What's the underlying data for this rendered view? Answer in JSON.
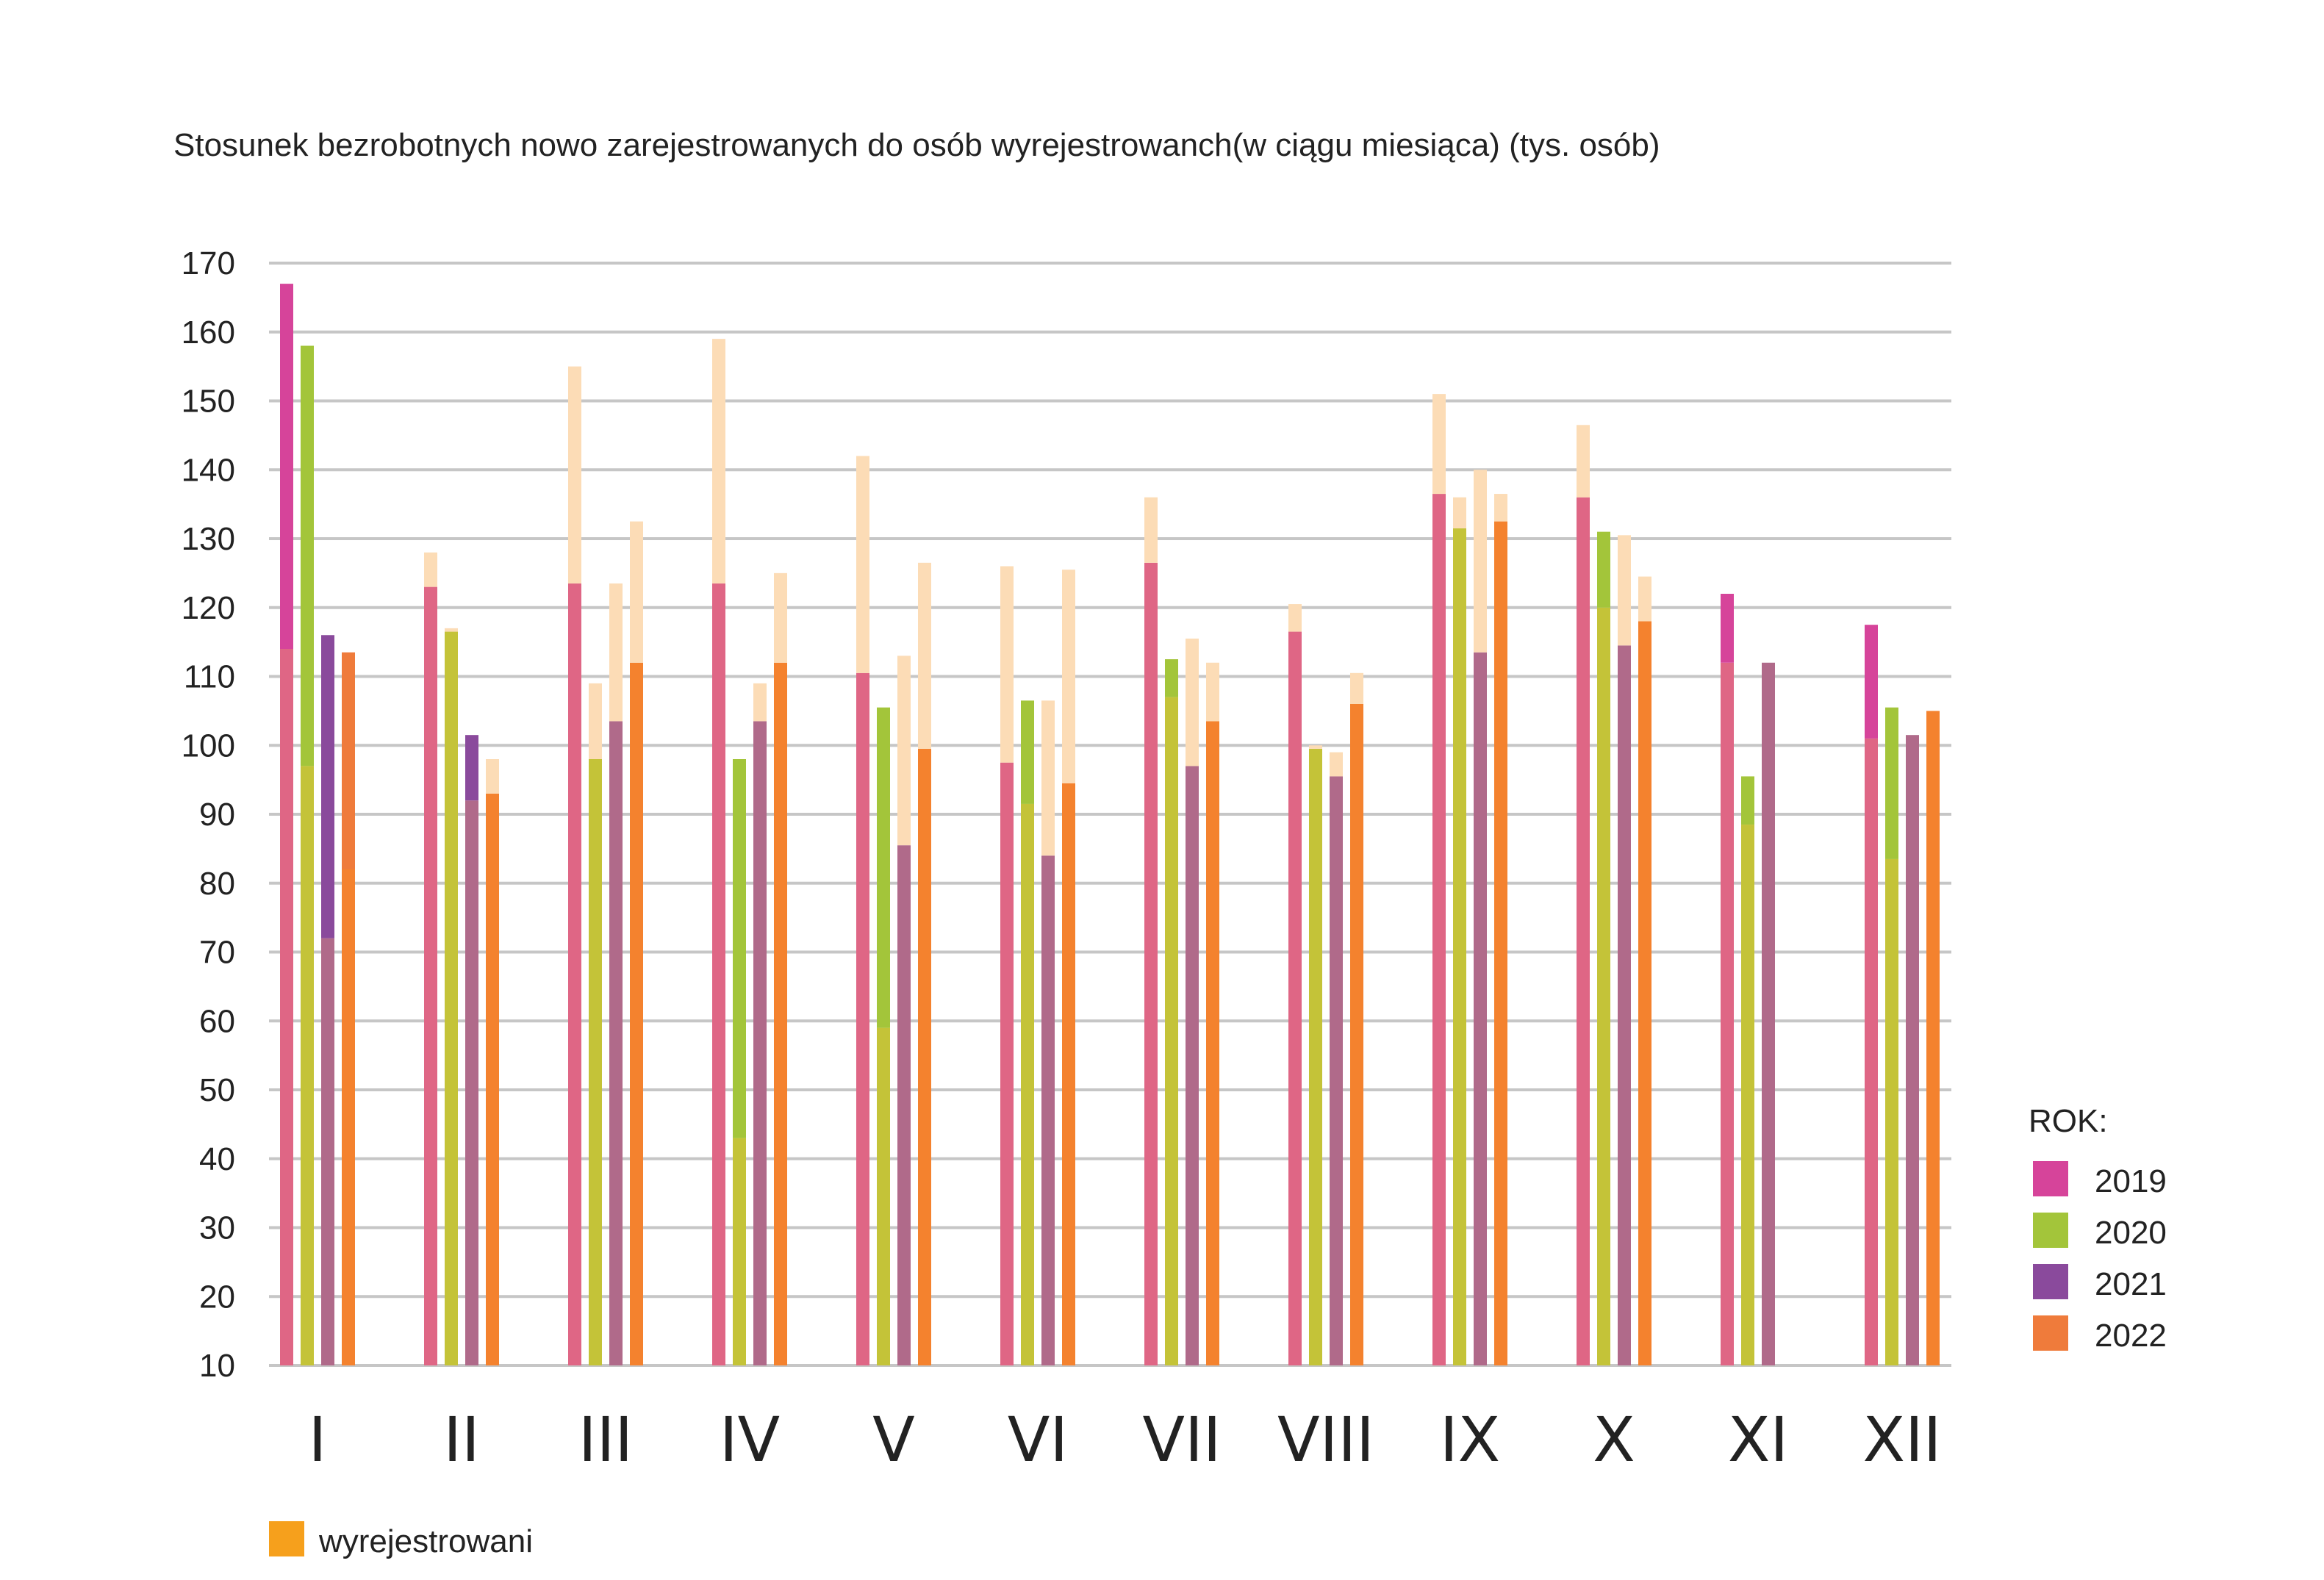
{
  "chart_data": {
    "type": "bar",
    "title": "Stosunek bezrobotnych nowo zarejestrowanych do osób wyrejestrowanch(w ciągu miesiąca) (tys. osób)",
    "xlabel": "",
    "ylabel": "",
    "ylim": [
      10,
      170
    ],
    "yticks": [
      10,
      20,
      30,
      40,
      50,
      60,
      70,
      80,
      90,
      100,
      110,
      120,
      130,
      140,
      150,
      160,
      170
    ],
    "grid": true,
    "categories": [
      "I",
      "II",
      "III",
      "IV",
      "V",
      "VI",
      "VII",
      "VIII",
      "IX",
      "X",
      "XI",
      "XII"
    ],
    "legend": {
      "title": "ROK:",
      "placement": "right",
      "items": [
        "2019",
        "2020",
        "2021",
        "2022"
      ]
    },
    "series": [
      {
        "name": "2019",
        "color": "#d6449a",
        "base_color": "#df6685",
        "zarejestrowani": [
          167,
          123,
          123.5,
          123.5,
          110.5,
          97.5,
          126.5,
          116.5,
          136.5,
          136,
          122,
          117.5
        ],
        "wyrejestrowani": [
          114,
          128,
          155,
          159,
          142,
          126,
          136,
          120.5,
          151,
          146.5,
          112,
          101
        ]
      },
      {
        "name": "2020",
        "color": "#a3c53a",
        "base_color": "#c4c338",
        "zarejestrowani": [
          158,
          116.5,
          98,
          98,
          105.5,
          106.5,
          112.5,
          99.5,
          131.5,
          131,
          95.5,
          105.5
        ],
        "wyrejestrowani": [
          97,
          117,
          109,
          43,
          59,
          91.5,
          107,
          100,
          136,
          120,
          88.5,
          83.5
        ]
      },
      {
        "name": "2021",
        "color": "#8a4a9c",
        "base_color": "#b06a8a",
        "zarejestrowani": [
          116,
          101.5,
          103.5,
          103.5,
          85.5,
          84,
          97,
          95.5,
          113.5,
          114.5,
          null,
          null
        ],
        "wyrejestrowani": [
          72,
          92,
          123.5,
          109,
          113,
          106.5,
          115.5,
          99,
          140,
          130.5,
          112,
          101.5
        ]
      },
      {
        "name": "2022",
        "color": "#ef7b3b",
        "base_color": "#f4822e",
        "zarejestrowani": [
          113.5,
          93,
          112,
          112,
          99.5,
          94.5,
          103.5,
          106,
          132.5,
          118,
          null,
          null
        ],
        "wyrejestrowani": [
          82,
          98,
          132.5,
          125,
          126.5,
          125.5,
          112,
          110.5,
          136.5,
          124.5,
          null,
          105
        ]
      }
    ],
    "secondary_legend": {
      "label": "wyrejestrowani",
      "color": "#f6a01c"
    },
    "colors": {
      "grid": "#c6c6c6",
      "wyrejestrowani_overlay": "#fcdcb6"
    }
  }
}
